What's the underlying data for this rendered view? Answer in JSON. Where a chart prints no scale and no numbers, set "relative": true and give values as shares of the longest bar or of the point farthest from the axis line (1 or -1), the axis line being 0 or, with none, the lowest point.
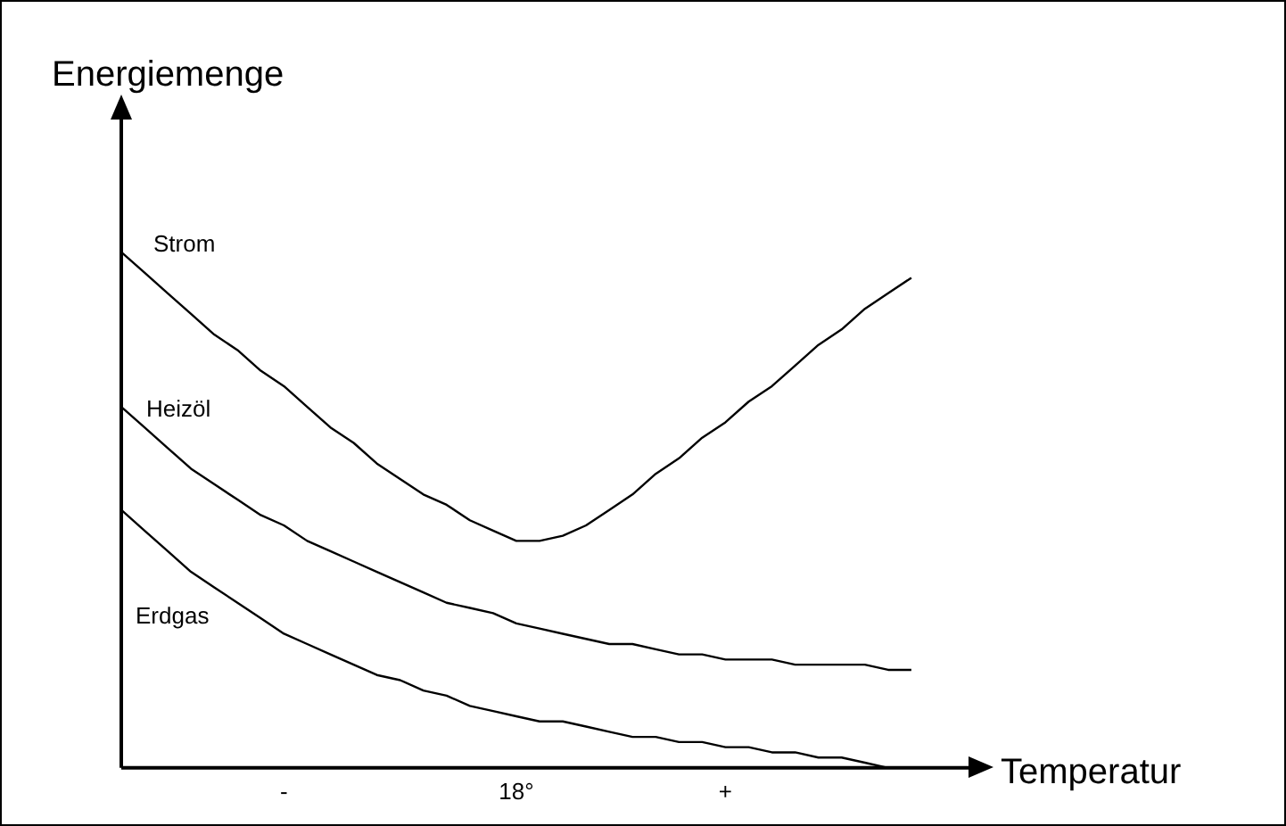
{
  "chart_data": {
    "type": "line",
    "relative": true,
    "xlabel": "Temperatur",
    "ylabel": "Energiemenge",
    "legend": false,
    "grid": false,
    "marker": "none",
    "line_style": "solid",
    "categories": [
      null,
      null,
      null,
      null,
      null,
      null,
      null,
      "-",
      null,
      null,
      null,
      null,
      null,
      null,
      null,
      null,
      null,
      "18°",
      null,
      null,
      null,
      null,
      null,
      null,
      null,
      null,
      "+",
      null,
      null,
      null,
      null,
      null,
      null,
      null,
      null,
      null,
      null
    ],
    "series": [
      {
        "name": "Strom",
        "color": "#000000",
        "values": [
          1,
          0.96,
          0.92,
          0.88,
          0.84,
          0.81,
          0.77,
          0.74,
          0.7,
          0.66,
          0.63,
          0.59,
          0.56,
          0.53,
          0.51,
          0.48,
          0.46,
          0.44,
          0.44,
          0.45,
          0.47,
          0.5,
          0.53,
          0.57,
          0.6,
          0.64,
          0.67,
          0.71,
          0.74,
          0.78,
          0.82,
          0.85,
          0.89,
          0.92,
          0.95,
          null,
          null
        ]
      },
      {
        "name": "Heizöl",
        "color": "#000000",
        "values": [
          0.7,
          0.66,
          0.62,
          0.58,
          0.55,
          0.52,
          0.49,
          0.47,
          0.44,
          0.42,
          0.4,
          0.38,
          0.36,
          0.34,
          0.32,
          0.31,
          0.3,
          0.28,
          0.27,
          0.26,
          0.25,
          0.24,
          0.24,
          0.23,
          0.22,
          0.22,
          0.21,
          0.21,
          0.21,
          0.2,
          0.2,
          0.2,
          0.2,
          0.19,
          0.19,
          null,
          null
        ]
      },
      {
        "name": "Erdgas",
        "color": "#000000",
        "values": [
          0.5,
          0.46,
          0.42,
          0.38,
          0.35,
          0.32,
          0.29,
          0.26,
          0.24,
          0.22,
          0.2,
          0.18,
          0.17,
          0.15,
          0.14,
          0.12,
          0.11,
          0.1,
          0.09,
          0.09,
          0.08,
          0.07,
          0.06,
          0.06,
          0.05,
          0.05,
          0.04,
          0.04,
          0.03,
          0.03,
          0.02,
          0.02,
          0.01,
          0,
          null,
          null,
          null
        ]
      }
    ]
  }
}
